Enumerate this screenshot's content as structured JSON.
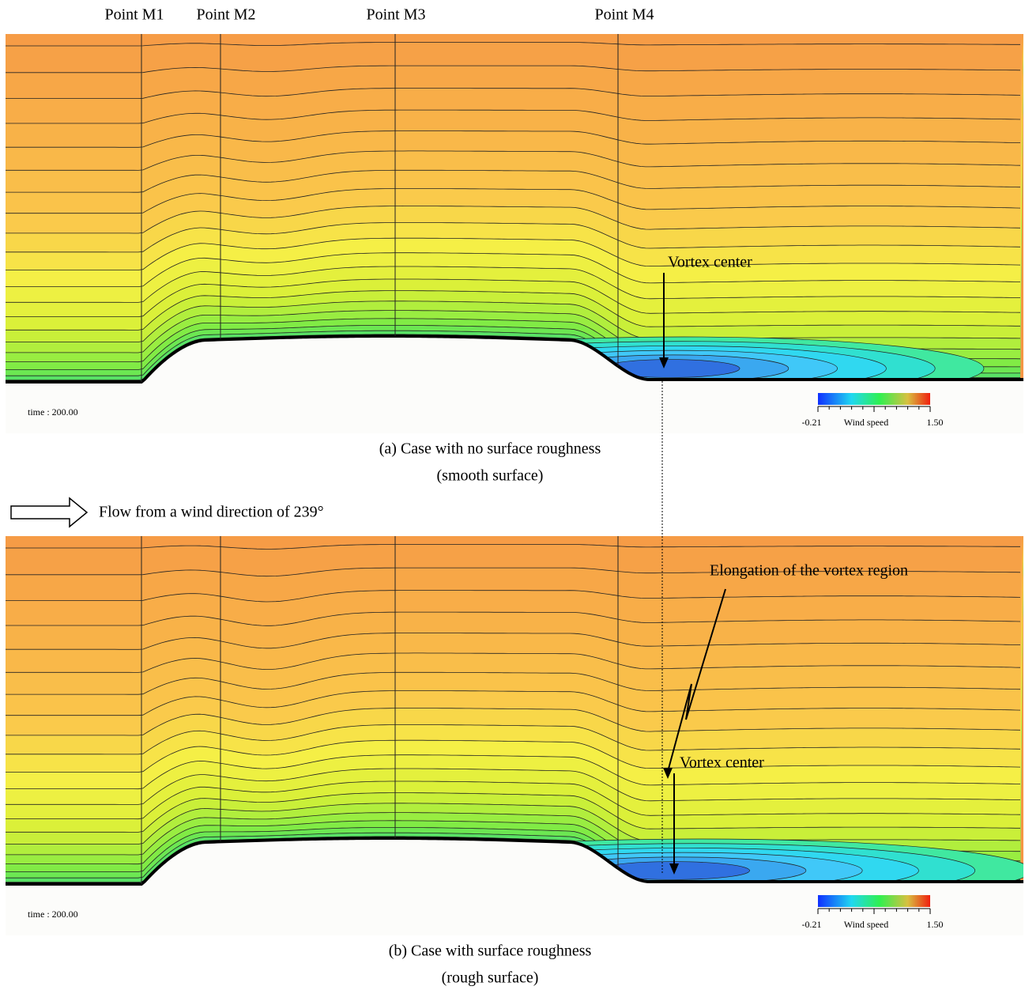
{
  "point_labels": [
    "Point M1",
    "Point M2",
    "Point M3",
    "Point M4"
  ],
  "panels": [
    {
      "time_label": "time : 200.00",
      "colorbar": {
        "min": "-0.21",
        "label": "Wind speed",
        "max": "1.50"
      },
      "annotations": [
        "Vortex center"
      ],
      "caption": [
        "(a) Case with no surface roughness",
        "(smooth surface)"
      ]
    },
    {
      "time_label": "time : 200.00",
      "colorbar": {
        "min": "-0.21",
        "label": "Wind speed",
        "max": "1.50"
      },
      "annotations": [
        "Elongation of the vortex region",
        "Vortex center"
      ],
      "caption": [
        "(b) Case with surface roughness",
        "(rough surface)"
      ]
    }
  ],
  "flow_label": "Flow from a wind direction of 239°"
}
